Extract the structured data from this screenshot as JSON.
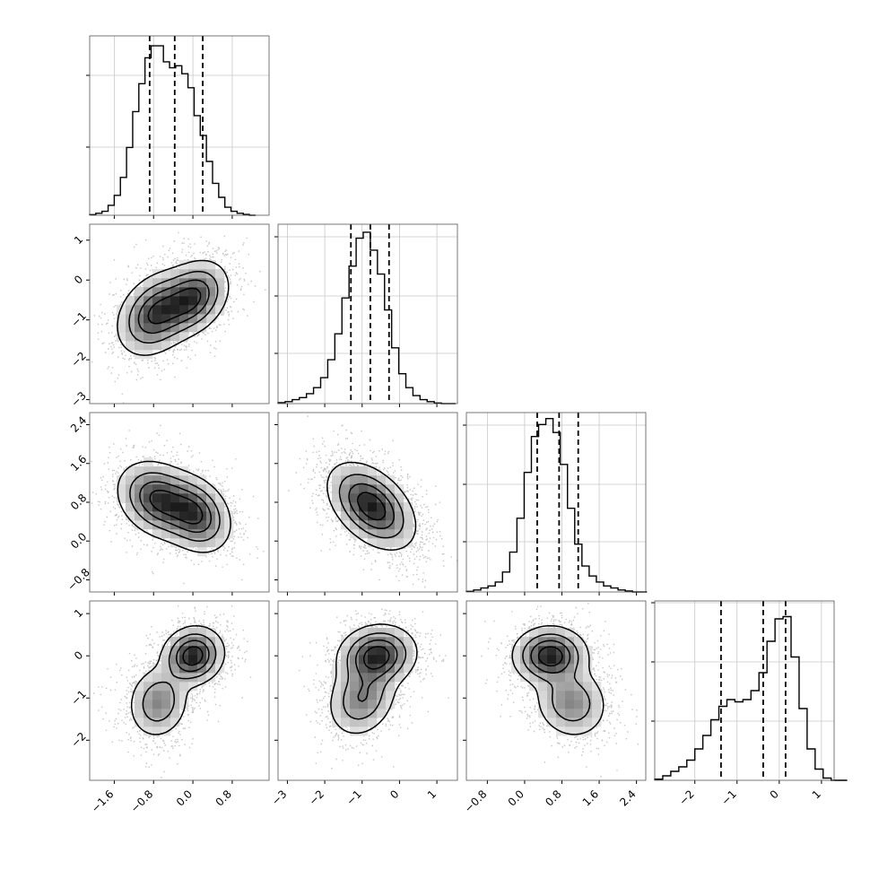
{
  "chart_data": {
    "type": "corner",
    "title": "",
    "parameters": [
      "",
      "",
      "",
      ""
    ],
    "diagonal_histograms": [
      {
        "index": 0,
        "x_range": [
          -2.1,
          1.55
        ],
        "x_ticks": [
          -1.6,
          -0.8,
          0.0,
          0.8
        ],
        "x_tick_labels": [
          "−1.6",
          "−0.8",
          "0.0",
          "0.8"
        ],
        "bin_edges_start": -2.1,
        "bin_width": 0.125,
        "counts": [
          0.3,
          1,
          2,
          5,
          10,
          19,
          34,
          52,
          66,
          79,
          85,
          85,
          77,
          74,
          75,
          71,
          64,
          50,
          40,
          27,
          16,
          9,
          4,
          2,
          1,
          0.4,
          0
        ],
        "y_max": 90,
        "y_tick_fracs": [
          0.38,
          0.78
        ],
        "quantiles": [
          -0.88,
          -0.37,
          0.2
        ]
      },
      {
        "index": 1,
        "x_range": [
          -3.25,
          1.55
        ],
        "x_ticks": [
          -3,
          -2,
          -1,
          0,
          1
        ],
        "x_tick_labels": [
          "−3",
          "−2",
          "−1",
          "0",
          "1"
        ],
        "bin_edges_start": -3.25,
        "bin_width": 0.19,
        "counts": [
          0.5,
          1,
          2,
          3,
          5,
          8,
          13,
          22,
          35,
          53,
          69,
          83,
          86,
          77,
          65,
          47,
          28,
          15,
          8,
          4,
          2,
          1,
          0.3,
          0,
          0
        ],
        "y_max": 90,
        "y_tick_fracs": [
          0.28,
          0.6,
          0.93
        ],
        "quantiles": [
          -1.3,
          -0.78,
          -0.28
        ]
      },
      {
        "index": 2,
        "x_range": [
          -1.25,
          2.6
        ],
        "x_ticks": [
          -0.8,
          0.0,
          0.8,
          1.6,
          2.4
        ],
        "x_tick_labels": [
          "−0.8",
          "0.0",
          "0.8",
          "1.6",
          "2.4"
        ],
        "bin_edges_start": -1.25,
        "bin_width": 0.155,
        "counts": [
          0.3,
          1,
          2,
          3,
          5,
          10,
          20,
          37,
          60,
          78,
          84,
          87,
          80,
          64,
          42,
          24,
          13,
          8,
          5,
          3,
          2,
          1,
          0.5,
          0,
          0
        ],
        "y_max": 90,
        "y_tick_fracs": [
          0.28,
          0.6,
          0.93
        ],
        "quantiles": [
          0.27,
          0.74,
          1.15
        ]
      },
      {
        "index": 3,
        "x_range": [
          -2.95,
          1.3
        ],
        "x_ticks": [
          -2,
          -1,
          0,
          1
        ],
        "x_tick_labels": [
          "−2",
          "−1",
          "0",
          "1"
        ],
        "bin_edges_start": -2.95,
        "bin_width": 0.19,
        "counts": [
          0.5,
          2,
          4,
          6,
          9,
          14,
          20,
          27,
          33,
          36,
          35,
          36,
          40,
          48,
          62,
          72,
          73,
          55,
          32,
          14,
          5,
          1,
          0,
          0
        ],
        "y_max": 80,
        "y_tick_fracs": [
          0.33,
          0.66,
          0.99
        ],
        "quantiles": [
          -1.38,
          -0.38,
          0.15
        ]
      }
    ],
    "y_axes": [
      {
        "row": 1,
        "y_range": [
          -3.1,
          1.4
        ],
        "y_ticks": [
          -3,
          -2,
          -1,
          0,
          1
        ],
        "y_tick_labels": [
          "−3",
          "−2",
          "−1",
          "0",
          "1"
        ]
      },
      {
        "row": 2,
        "y_range": [
          -1.05,
          2.65
        ],
        "y_ticks": [
          -0.8,
          0.0,
          0.8,
          1.6,
          2.4
        ],
        "y_tick_labels": [
          "−0.8",
          "0.0",
          "0.8",
          "1.6",
          "2.4"
        ]
      },
      {
        "row": 3,
        "y_range": [
          -2.95,
          1.3
        ],
        "y_ticks": [
          -2,
          -1,
          0,
          1
        ],
        "y_tick_labels": [
          "−2",
          "−1",
          "0",
          "1"
        ]
      }
    ],
    "density_panels": [
      {
        "row": 1,
        "col": 0,
        "modes": [
          {
            "mx": -0.75,
            "my": -0.85,
            "sx": 0.38,
            "sy": 0.5,
            "rho": 0.3,
            "w": 0.55
          },
          {
            "mx": 0.0,
            "my": -0.45,
            "sx": 0.35,
            "sy": 0.45,
            "rho": 0.3,
            "w": 0.45
          }
        ]
      },
      {
        "row": 2,
        "col": 0,
        "modes": [
          {
            "mx": -0.7,
            "my": 0.85,
            "sx": 0.4,
            "sy": 0.38,
            "rho": -0.25,
            "w": 0.55
          },
          {
            "mx": 0.05,
            "my": 0.55,
            "sx": 0.35,
            "sy": 0.38,
            "rho": -0.25,
            "w": 0.45
          }
        ]
      },
      {
        "row": 2,
        "col": 1,
        "modes": [
          {
            "mx": -0.75,
            "my": 0.72,
            "sx": 0.55,
            "sy": 0.42,
            "rho": -0.45,
            "w": 1.0
          }
        ]
      },
      {
        "row": 3,
        "col": 0,
        "modes": [
          {
            "mx": 0.0,
            "my": 0.0,
            "sx": 0.3,
            "sy": 0.33,
            "rho": 0.1,
            "w": 0.6
          },
          {
            "mx": -0.7,
            "my": -1.1,
            "sx": 0.3,
            "sy": 0.42,
            "rho": 0.1,
            "w": 0.4
          }
        ]
      },
      {
        "row": 3,
        "col": 1,
        "modes": [
          {
            "mx": -0.6,
            "my": 0.0,
            "sx": 0.5,
            "sy": 0.35,
            "rho": 0.1,
            "w": 0.6
          },
          {
            "mx": -1.0,
            "my": -1.0,
            "sx": 0.45,
            "sy": 0.45,
            "rho": 0.2,
            "w": 0.4
          }
        ]
      },
      {
        "row": 3,
        "col": 2,
        "modes": [
          {
            "mx": 0.55,
            "my": 0.0,
            "sx": 0.38,
            "sy": 0.33,
            "rho": 0.0,
            "w": 0.6
          },
          {
            "mx": 1.0,
            "my": -1.1,
            "sx": 0.38,
            "sy": 0.42,
            "rho": -0.1,
            "w": 0.4
          }
        ]
      }
    ],
    "grid": true,
    "quantile_line_style": "dashed",
    "contour_color": "#000000",
    "scatter_color": "#7f7f7f"
  }
}
